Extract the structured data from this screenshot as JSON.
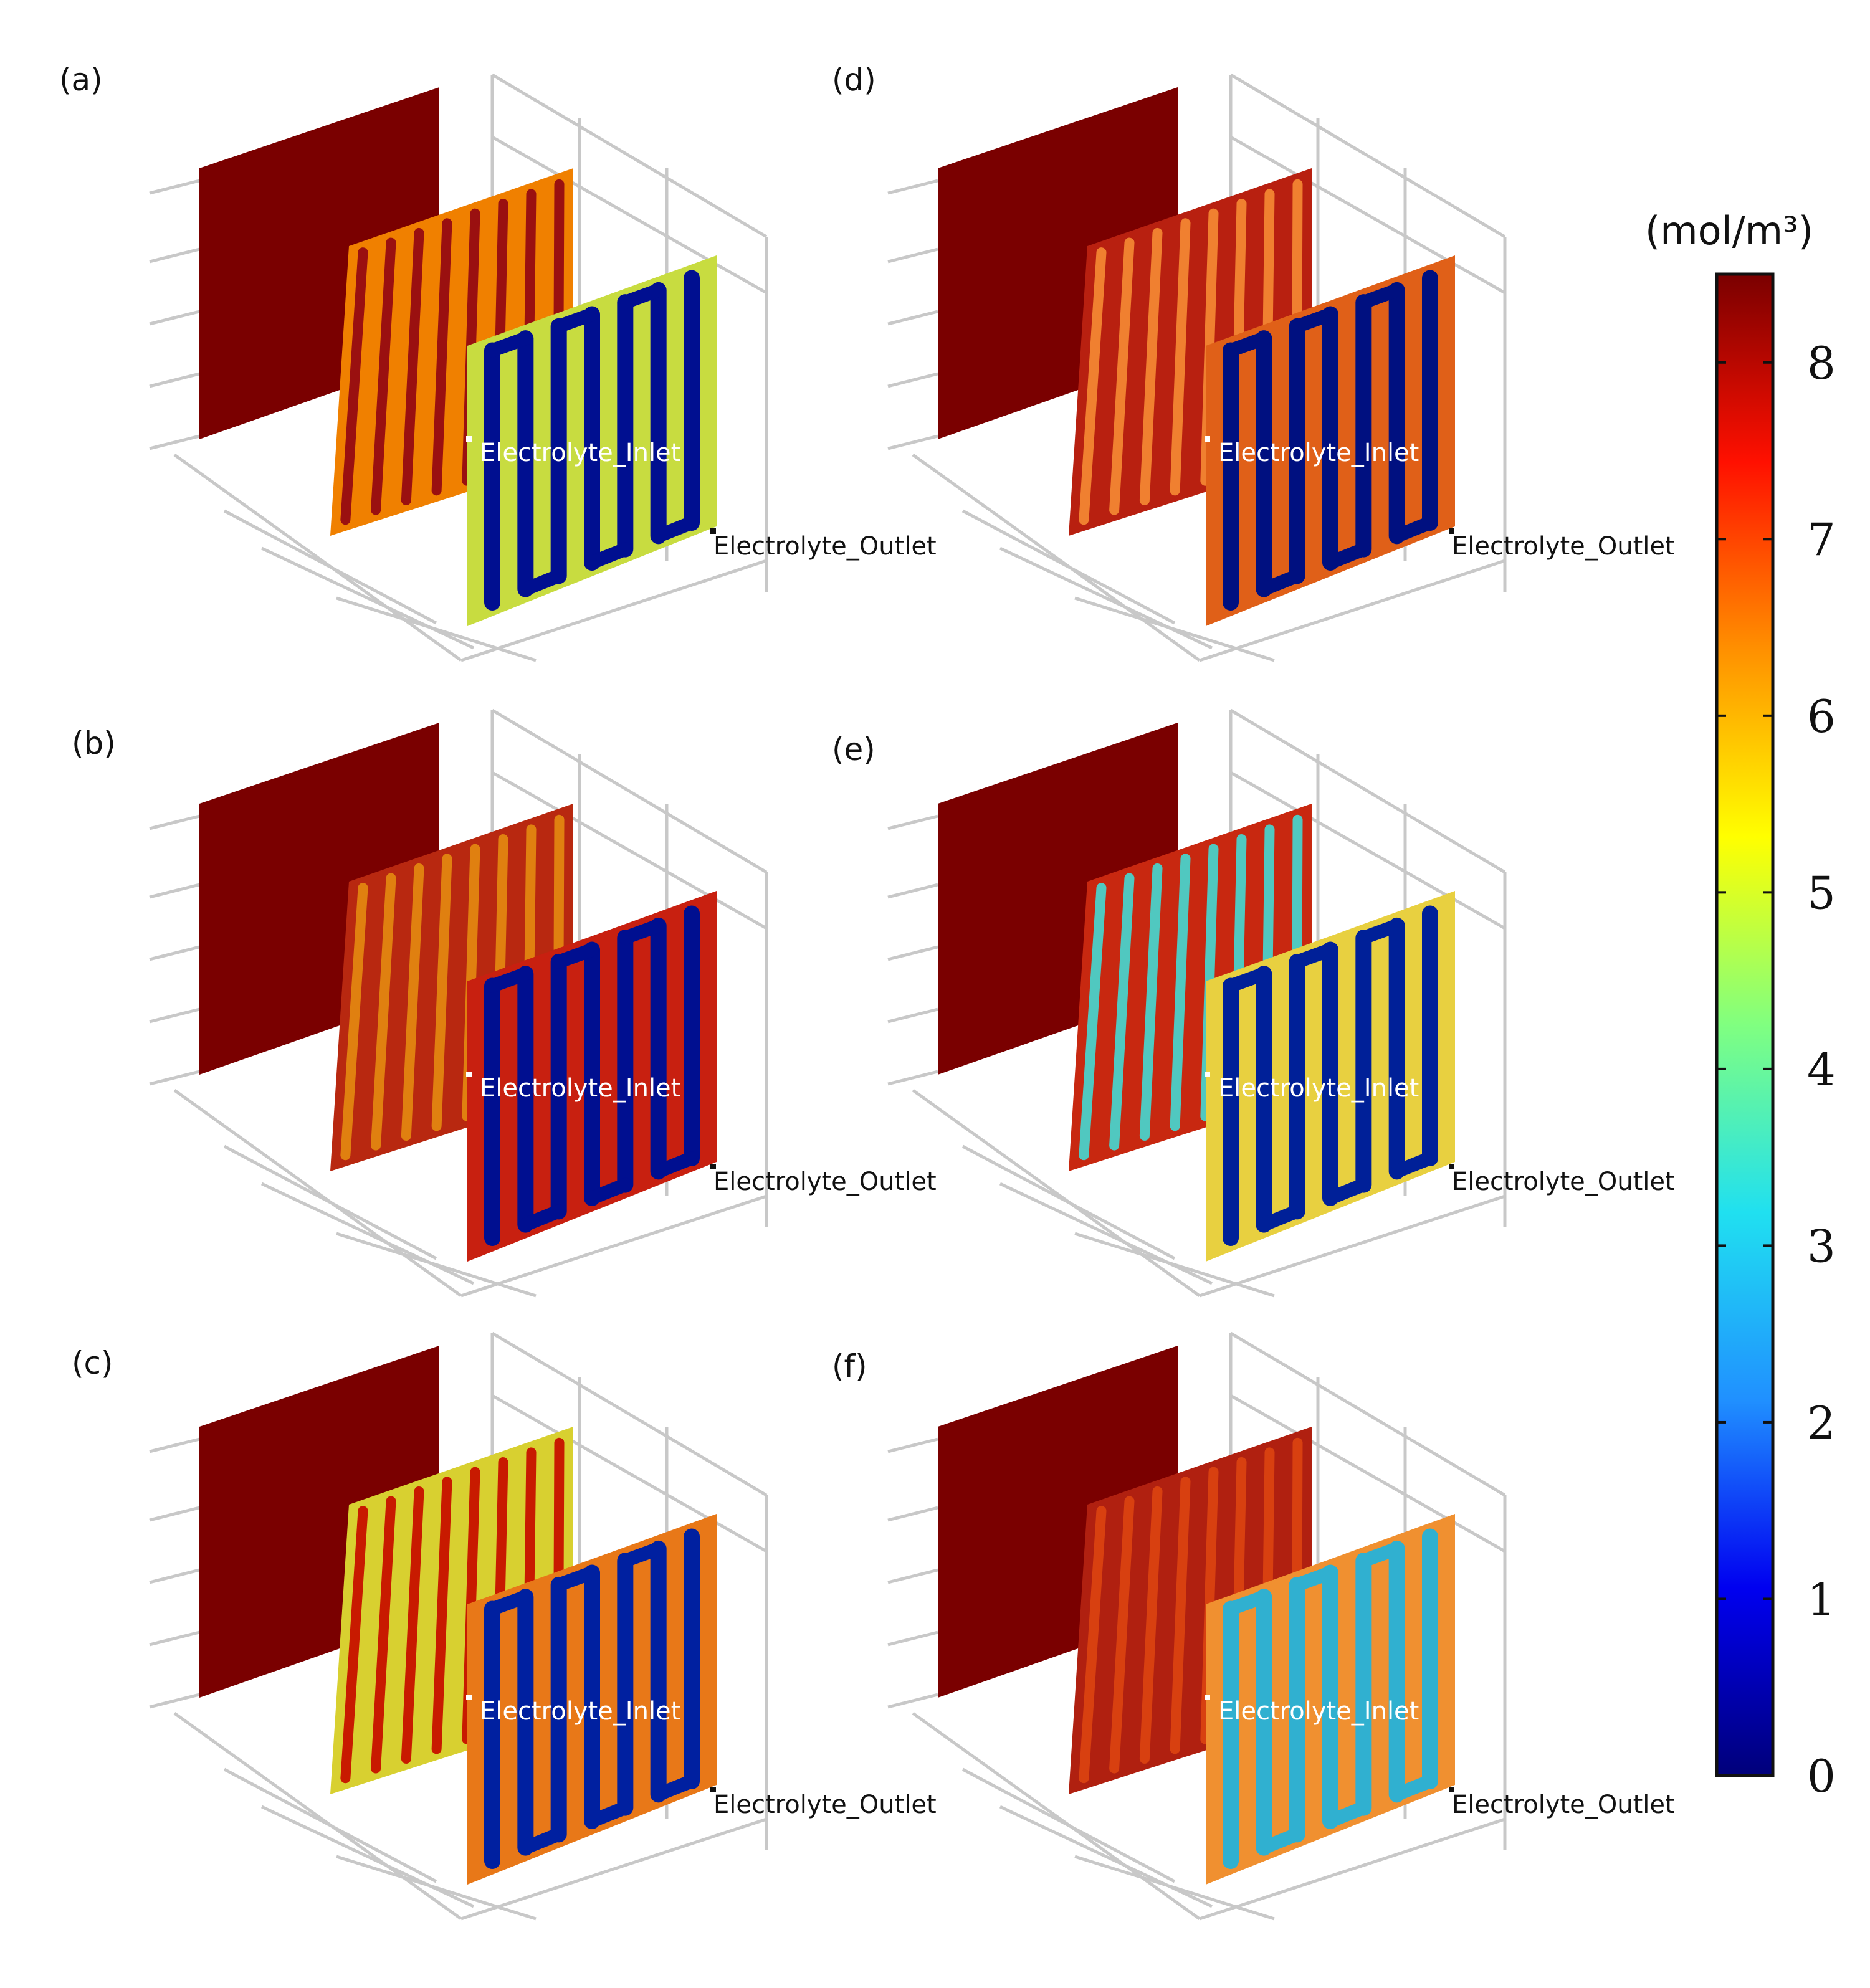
{
  "colors": {
    "dark_red": "#7a0000",
    "red": "#c81a00",
    "orange": "#f07a00",
    "yellow": "#e8e800",
    "green": "#62d060",
    "cyan": "#28c8e0",
    "blue": "#1040d8",
    "navy": "#00007a",
    "axis_gray": "#c8c8c8"
  },
  "labels": {
    "inlet": "Electrolyte_Inlet",
    "outlet": "Electrolyte_Outlet"
  },
  "panels": [
    {
      "id": "a",
      "label": "(a)",
      "back_color": "#7a0000",
      "mid_base": "#f08000",
      "mid_channel": "#9a1010",
      "front_base": "#c8dc40",
      "front_channel": "#000f90"
    },
    {
      "id": "b",
      "label": "(b)",
      "back_color": "#7a0000",
      "mid_base": "#b82810",
      "mid_channel": "#e08010",
      "front_base": "#c82010",
      "front_channel": "#000f90"
    },
    {
      "id": "c",
      "label": "(c)",
      "back_color": "#7a0000",
      "mid_base": "#d8d030",
      "mid_channel": "#c81a00",
      "front_base": "#e87818",
      "front_channel": "#0020a0"
    },
    {
      "id": "d",
      "label": "(d)",
      "back_color": "#7a0000",
      "mid_base": "#b82010",
      "mid_channel": "#f08030",
      "front_base": "#e06018",
      "front_channel": "#001080"
    },
    {
      "id": "e",
      "label": "(e)",
      "back_color": "#7a0000",
      "mid_base": "#c82810",
      "mid_channel": "#50c8c0",
      "front_base": "#e8d040",
      "front_channel": "#002098"
    },
    {
      "id": "f",
      "label": "(f)",
      "back_color": "#7a0000",
      "mid_base": "#b02010",
      "mid_channel": "#d84010",
      "front_base": "#f09030",
      "front_channel": "#30b0d0"
    }
  ],
  "colorbar": {
    "unit": "(mol/m³)",
    "ticks": [
      "8",
      "7",
      "6",
      "5",
      "4",
      "3",
      "2",
      "1",
      "0"
    ],
    "tick_values": [
      8,
      7,
      6,
      5,
      4,
      3,
      2,
      1,
      0
    ],
    "min": 0,
    "max": 8.5,
    "gradient_stops": [
      "#00007a",
      "#0000f0",
      "#2090ff",
      "#20e0f0",
      "#80ff80",
      "#ffff00",
      "#ff9000",
      "#ff1000",
      "#7a0000"
    ]
  }
}
